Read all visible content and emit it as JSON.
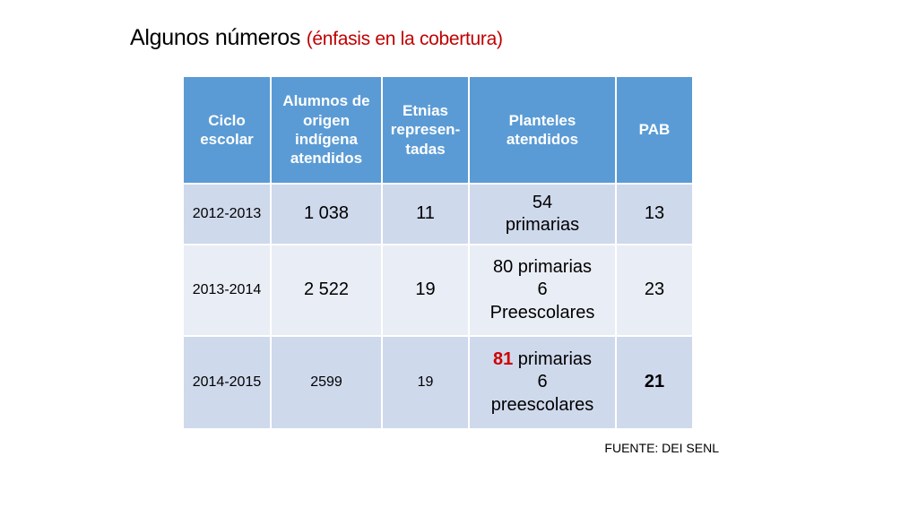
{
  "title": {
    "main": "Algunos números",
    "emphasis": "(énfasis en la cobertura)"
  },
  "table": {
    "headers": [
      "Ciclo escolar",
      "Alumnos de origen indígena atendidos",
      "Etnias represen-tadas",
      "Planteles atendidos",
      "PAB"
    ],
    "rows": [
      {
        "ciclo": "2012-2013",
        "alumnos": "1 038",
        "etnias": "11",
        "planteles_line1": "54",
        "planteles_line2": "primarias",
        "pab": "13"
      },
      {
        "ciclo": "2013-2014",
        "alumnos": "2 522",
        "etnias": "19",
        "planteles_line1": "80 primarias",
        "planteles_line2": "6",
        "planteles_line3": "Preescolares",
        "pab": "23"
      },
      {
        "ciclo": "2014-2015",
        "alumnos": "2599",
        "etnias": "19",
        "planteles_num": "81",
        "planteles_rest": " primarias",
        "planteles_line2": "6",
        "planteles_line3": "preescolares",
        "pab": "21"
      }
    ]
  },
  "source": "FUENTE: DEI SENL",
  "colors": {
    "header_bg": "#5b9bd5",
    "row_alt_dark": "#cfd9ec",
    "row_alt_light": "#e9edf5",
    "emphasis_red": "#c00000"
  }
}
